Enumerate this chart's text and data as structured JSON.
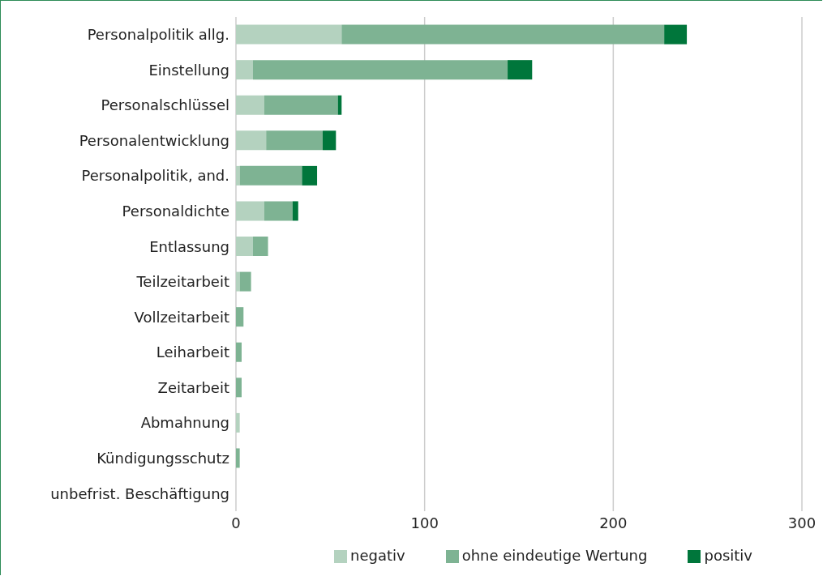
{
  "chart_data": {
    "type": "bar",
    "orientation": "horizontal",
    "stacked": true,
    "categories": [
      "Personalpolitik allg.",
      "Einstellung",
      "Personalschlüssel",
      "Personalentwicklung",
      "Personalpolitik, and.",
      "Personaldichte",
      "Entlassung",
      "Teilzeitarbeit",
      "Vollzeitarbeit",
      "Leiharbeit",
      "Zeitarbeit",
      "Abmahnung",
      "Kündigungsschutz",
      "unbefrist. Beschäftigung"
    ],
    "series": [
      {
        "name": "negativ",
        "color": "#b4d2bf",
        "values": [
          56,
          9,
          15,
          16,
          2,
          15,
          9,
          2,
          0,
          0,
          0,
          2,
          0,
          0
        ]
      },
      {
        "name": "ohne eindeutige Wertung",
        "color": "#7eb393",
        "values": [
          171,
          135,
          39,
          30,
          33,
          15,
          8,
          6,
          4,
          3,
          3,
          0,
          2,
          0
        ]
      },
      {
        "name": "positiv",
        "color": "#00763b",
        "values": [
          12,
          13,
          2,
          7,
          8,
          3,
          0,
          0,
          0,
          0,
          0,
          0,
          0,
          0
        ]
      }
    ],
    "xlim": [
      0,
      300
    ],
    "xticks": [
      0,
      100,
      200,
      300
    ],
    "grid": "x",
    "legend": "bottom"
  }
}
